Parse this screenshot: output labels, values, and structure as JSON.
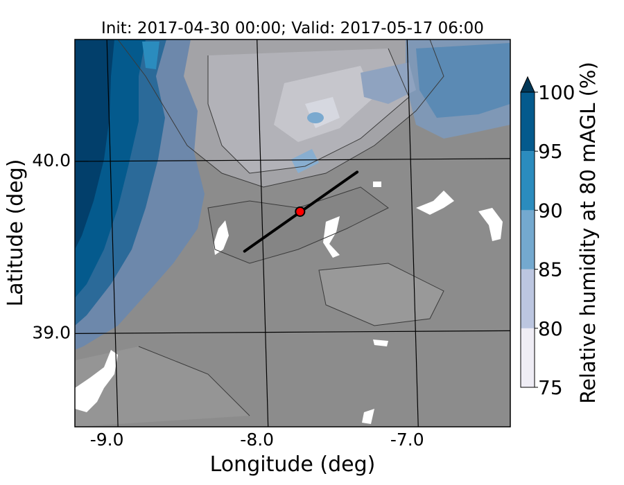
{
  "chart_data": {
    "type": "heatmap",
    "title": "Init: 2017-04-30 00:00; Valid: 2017-05-17 06:00",
    "xlabel": "Longitude (deg)",
    "ylabel": "Latitude (deg)",
    "xlim": [
      -9.25,
      -6.35
    ],
    "ylim": [
      38.45,
      40.7
    ],
    "x_ticks": [
      {
        "value": -9.0,
        "label": "-9.0"
      },
      {
        "value": -8.0,
        "label": "-8.0"
      },
      {
        "value": -7.0,
        "label": "-7.0"
      }
    ],
    "y_ticks": [
      {
        "value": 40.0,
        "label": "40.0"
      },
      {
        "value": 39.0,
        "label": "39.0"
      }
    ],
    "grid": true,
    "colorbar": {
      "label": "Relative humidity at 80 mAGL (%)",
      "extend": "max",
      "levels": [
        75,
        80,
        85,
        90,
        95,
        100
      ],
      "tick_labels": [
        "75",
        "80",
        "85",
        "90",
        "95",
        "100"
      ],
      "colors": [
        "#efedf5",
        "#bcc6e0",
        "#74a9cf",
        "#2b8cbe",
        "#045a8d",
        "#023858"
      ],
      "placement": "right"
    },
    "below_range_color": "#8c8c8c",
    "cross_section_line": {
      "start": [
        -8.12,
        39.47
      ],
      "end": [
        -7.37,
        39.93
      ],
      "color": "#000000"
    },
    "point_marker": {
      "lon": -7.75,
      "lat": 39.7,
      "color": "#ff0000"
    }
  }
}
